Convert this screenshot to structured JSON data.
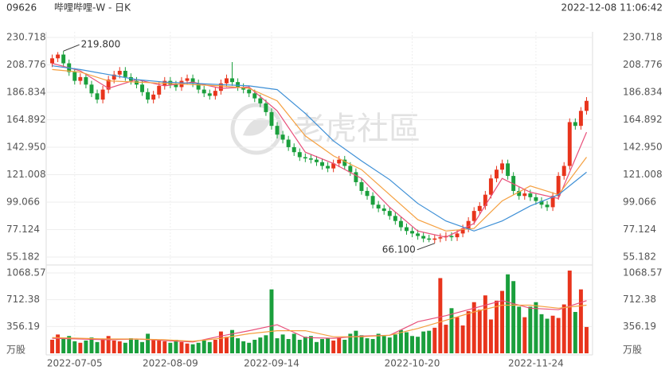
{
  "header": {
    "code": "09626",
    "name": "哔哩哔哩-W - 日K",
    "time": "2022-12-08 11:06:42"
  },
  "watermark": "老虎社區",
  "chart_data": [
    {
      "type": "candlestick",
      "up_color": "#e8341c",
      "down_color": "#1a9f3c",
      "grid": true,
      "categories": [
        null,
        null,
        null,
        null,
        "2022-07-05",
        null,
        null,
        null,
        null,
        null,
        null,
        null,
        null,
        null,
        null,
        null,
        null,
        null,
        null,
        null,
        null,
        "2022-08-09",
        null,
        null,
        null,
        null,
        null,
        null,
        null,
        null,
        null,
        null,
        null,
        null,
        null,
        null,
        null,
        null,
        null,
        "2022-09-14",
        null,
        null,
        null,
        null,
        null,
        null,
        null,
        null,
        null,
        null,
        null,
        null,
        null,
        null,
        null,
        null,
        null,
        null,
        null,
        null,
        null,
        null,
        null,
        null,
        "2022-10-20",
        null,
        null,
        null,
        null,
        null,
        null,
        null,
        null,
        null,
        null,
        null,
        null,
        null,
        null,
        null,
        null,
        null,
        null,
        null,
        null,
        null,
        "2022-11-24",
        null,
        null,
        null,
        null,
        null,
        null,
        null,
        null,
        null
      ],
      "open": [
        210,
        214,
        217,
        210,
        203,
        196,
        199,
        193,
        186,
        181,
        189,
        197,
        201,
        204,
        199,
        196,
        193,
        187,
        181,
        185,
        192,
        196,
        193,
        191,
        196,
        198,
        194,
        189,
        186,
        184,
        188,
        194,
        198,
        195,
        191,
        189,
        186,
        182,
        178,
        171,
        160,
        153,
        149,
        143,
        139,
        135,
        134,
        133,
        131,
        128,
        126,
        130,
        133,
        128,
        123,
        115,
        108,
        104,
        97,
        94,
        92,
        88,
        84,
        79,
        76,
        74,
        72,
        70,
        69,
        70,
        71,
        72,
        71,
        74,
        78,
        84,
        92,
        96,
        105,
        118,
        125,
        130,
        120,
        108,
        104,
        106,
        103,
        100,
        97,
        95,
        104,
        120,
        128,
        163,
        160,
        172
      ],
      "high": [
        217,
        219,
        219.8,
        213,
        206,
        202,
        202,
        196,
        189,
        192,
        200,
        204,
        207,
        207,
        202,
        199,
        196,
        190,
        188,
        195,
        199,
        199,
        196,
        199,
        201,
        201,
        197,
        192,
        189,
        191,
        197,
        201,
        211,
        198,
        194,
        192,
        189,
        185,
        181,
        174,
        163,
        156,
        152,
        146,
        142,
        138,
        137,
        136,
        134,
        131,
        133,
        136,
        136,
        131,
        126,
        118,
        111,
        107,
        100,
        97,
        95,
        91,
        87,
        82,
        79,
        77,
        75,
        73,
        73,
        74,
        75,
        75,
        77,
        81,
        87,
        95,
        99,
        108,
        121,
        128,
        133,
        133,
        123,
        111,
        109,
        109,
        106,
        103,
        100,
        107,
        123,
        131,
        166,
        166,
        175,
        183
      ],
      "low": [
        207,
        211,
        207,
        200,
        193,
        193,
        190,
        183,
        178,
        178,
        186,
        194,
        198,
        196,
        193,
        190,
        184,
        178,
        178,
        182,
        189,
        190,
        188,
        188,
        193,
        191,
        186,
        183,
        181,
        181,
        185,
        191,
        192,
        188,
        186,
        183,
        179,
        175,
        168,
        157,
        150,
        146,
        140,
        136,
        132,
        131,
        130,
        128,
        125,
        123,
        123,
        127,
        125,
        120,
        112,
        105,
        101,
        94,
        91,
        89,
        85,
        81,
        76,
        73,
        71,
        69,
        67,
        67,
        66.1,
        67,
        68,
        68,
        68,
        71,
        75,
        81,
        89,
        93,
        102,
        115,
        122,
        117,
        105,
        101,
        101,
        100,
        97,
        94,
        92,
        92,
        101,
        117,
        125,
        157,
        157,
        169
      ],
      "close": [
        214,
        217,
        210,
        203,
        196,
        199,
        193,
        186,
        181,
        189,
        197,
        201,
        204,
        199,
        196,
        193,
        187,
        181,
        185,
        192,
        196,
        193,
        191,
        196,
        198,
        194,
        189,
        186,
        184,
        188,
        194,
        198,
        195,
        191,
        189,
        186,
        182,
        178,
        171,
        160,
        153,
        149,
        143,
        139,
        135,
        134,
        133,
        131,
        128,
        126,
        130,
        133,
        128,
        123,
        115,
        108,
        104,
        97,
        94,
        92,
        88,
        84,
        79,
        76,
        74,
        72,
        70,
        69,
        70,
        71,
        72,
        71,
        74,
        78,
        84,
        92,
        96,
        105,
        118,
        125,
        130,
        120,
        108,
        104,
        106,
        103,
        100,
        97,
        95,
        104,
        120,
        128,
        163,
        160,
        172,
        180
      ],
      "ylim": [
        55.182,
        230.718
      ],
      "yticks": [
        55.182,
        77.124,
        99.066,
        121.008,
        {
          "value": 142.95,
          "label": "142.950"
        },
        164.892,
        186.834,
        208.776,
        230.718
      ],
      "overlays": [
        {
          "color": "#e8507a",
          "x": [
            0,
            5,
            10,
            15,
            20,
            25,
            30,
            35,
            40,
            45,
            50,
            55,
            60,
            65,
            70,
            75,
            80,
            85,
            90,
            95
          ],
          "values": [
            210,
            204,
            190,
            197,
            192,
            195,
            190,
            191,
            172,
            139,
            130,
            118,
            95,
            76,
            71,
            82,
            118,
            107,
            102,
            155
          ]
        },
        {
          "color": "#f5a040",
          "x": [
            0,
            5,
            10,
            15,
            20,
            25,
            30,
            35,
            40,
            45,
            50,
            55,
            60,
            65,
            70,
            75,
            80,
            85,
            90,
            95
          ],
          "values": [
            205,
            203,
            196,
            195,
            194,
            193,
            192,
            190,
            180,
            152,
            136,
            125,
            105,
            85,
            76,
            78,
            100,
            112,
            105,
            135
          ]
        },
        {
          "color": "#3d8fd6",
          "x": [
            0,
            5,
            10,
            15,
            20,
            25,
            30,
            35,
            40,
            45,
            50,
            55,
            60,
            65,
            70,
            75,
            80,
            85,
            90,
            95
          ],
          "values": [
            208,
            205,
            201,
            197,
            195,
            194,
            193,
            192,
            189,
            170,
            148,
            132,
            117,
            98,
            84,
            76,
            84,
            96,
            105,
            123
          ]
        }
      ],
      "annotations": [
        {
          "index": 2,
          "text": {
            "value": 219.8,
            "label": "219.800"
          }
        },
        {
          "index": 68,
          "text": {
            "value": 66.1,
            "label": "66.100"
          }
        }
      ]
    },
    {
      "type": "bar",
      "unit": "万股",
      "grid": true,
      "values": [
        180,
        250,
        200,
        230,
        160,
        140,
        170,
        210,
        150,
        190,
        230,
        170,
        160,
        140,
        200,
        180,
        150,
        260,
        190,
        170,
        160,
        140,
        180,
        150,
        130,
        120,
        140,
        170,
        150,
        180,
        290,
        220,
        310,
        200,
        160,
        140,
        180,
        210,
        240,
        850,
        200,
        250,
        190,
        260,
        180,
        220,
        230,
        150,
        190,
        200,
        170,
        210,
        180,
        260,
        300,
        240,
        200,
        190,
        260,
        230,
        210,
        250,
        310,
        280,
        230,
        220,
        290,
        300,
        340,
        1000,
        380,
        600,
        480,
        370,
        560,
        680,
        580,
        770,
        450,
        700,
        830,
        1050,
        960,
        620,
        480,
        620,
        680,
        520,
        460,
        500,
        470,
        650,
        1100,
        550,
        850,
        350
      ],
      "ylim": [
        0,
        1068.57
      ],
      "yticks": [
        356.19,
        712.38,
        1068.57
      ],
      "overlays": [
        {
          "color": "#e8507a",
          "x": [
            0,
            5,
            10,
            15,
            20,
            25,
            30,
            35,
            40,
            45,
            50,
            55,
            60,
            65,
            70,
            75,
            80,
            85,
            90,
            95
          ],
          "values": [
            200,
            190,
            180,
            190,
            170,
            150,
            230,
            300,
            380,
            210,
            200,
            230,
            240,
            420,
            500,
            600,
            700,
            600,
            580,
            700
          ]
        },
        {
          "color": "#f5a040",
          "x": [
            0,
            5,
            10,
            15,
            20,
            25,
            30,
            35,
            40,
            45,
            50,
            55,
            60,
            65,
            70,
            75,
            80,
            85,
            90,
            95
          ],
          "values": [
            210,
            200,
            190,
            190,
            180,
            160,
            200,
            260,
            300,
            300,
            220,
            220,
            240,
            330,
            440,
            550,
            640,
            640,
            600,
            640
          ]
        }
      ]
    }
  ]
}
